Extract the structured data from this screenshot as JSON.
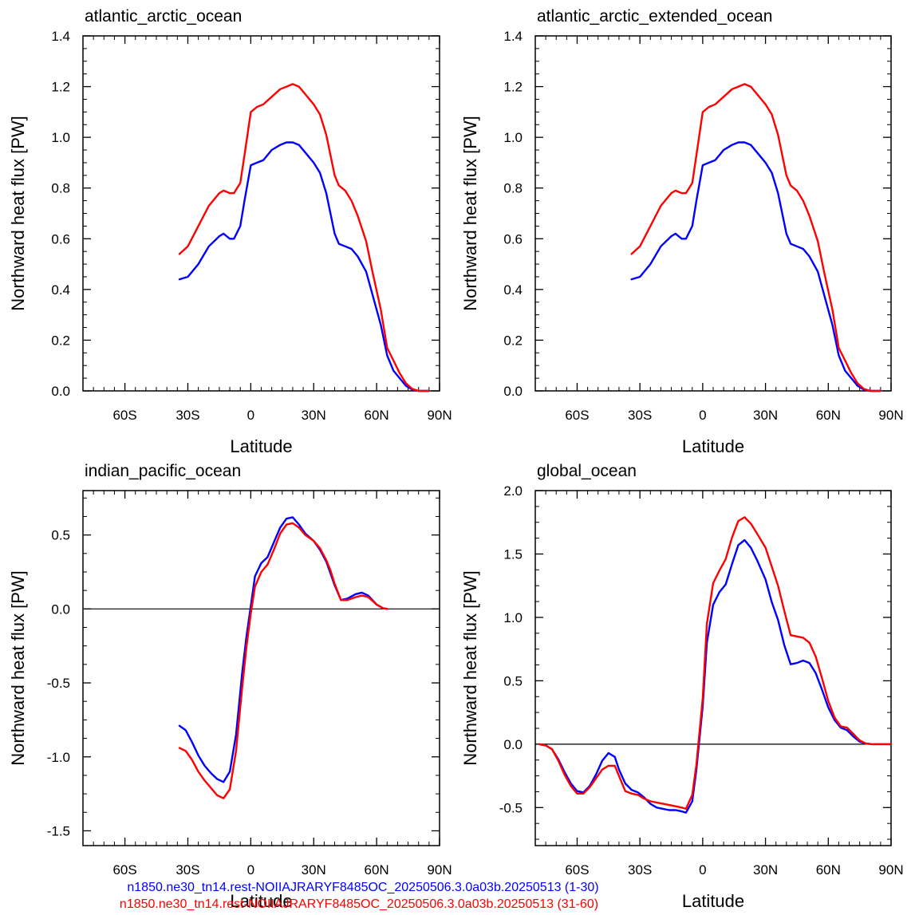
{
  "colors": {
    "series1": "#0000ff",
    "series2": "#ff0000",
    "axis": "#000000",
    "zero_line": "#000000"
  },
  "legend": {
    "series1": "n1850.ne30_tn14.rest-NOIIAJRARYF8485OC_20250506.3.0a03b.20250513 (1-30)",
    "series2": "n1850.ne30_tn14.rest-NOIIAJRARYF8485OC_20250506.3.0a03b.20250513 (31-60)"
  },
  "chart_data": [
    {
      "type": "line",
      "title": "atlantic_arctic_ocean",
      "xlabel": "Latitude",
      "ylabel": "Northward heat flux [PW]",
      "xlim": [
        -80,
        90
      ],
      "ylim": [
        0.0,
        1.4
      ],
      "xticks": [
        -60,
        -30,
        0,
        30,
        60,
        90
      ],
      "xtick_labels": [
        "60S",
        "30S",
        "0",
        "30N",
        "60N",
        "90N"
      ],
      "yticks": [
        0.0,
        0.2,
        0.4,
        0.6,
        0.8,
        1.0,
        1.2,
        1.4
      ],
      "ytick_labels": [
        "0.0",
        "0.2",
        "0.4",
        "0.6",
        "0.8",
        "1.0",
        "1.2",
        "1.4"
      ],
      "zero_line": false,
      "series": [
        {
          "color": "#0000ff",
          "x": [
            -34,
            -30,
            -25,
            -20,
            -15,
            -13,
            -10,
            -8,
            -5,
            -3,
            0,
            3,
            6,
            10,
            14,
            17,
            20,
            23,
            26,
            30,
            33,
            36,
            40,
            42,
            45,
            48,
            51,
            55,
            58,
            62,
            65,
            68,
            71,
            74,
            77,
            80,
            83,
            85
          ],
          "y": [
            0.44,
            0.45,
            0.5,
            0.57,
            0.61,
            0.62,
            0.6,
            0.6,
            0.65,
            0.75,
            0.89,
            0.9,
            0.91,
            0.95,
            0.97,
            0.98,
            0.98,
            0.97,
            0.94,
            0.9,
            0.86,
            0.78,
            0.62,
            0.58,
            0.57,
            0.56,
            0.53,
            0.47,
            0.38,
            0.26,
            0.14,
            0.08,
            0.05,
            0.02,
            0.005,
            0.0,
            0.0,
            0.0
          ]
        },
        {
          "color": "#ff0000",
          "x": [
            -34,
            -30,
            -25,
            -20,
            -15,
            -13,
            -10,
            -8,
            -5,
            -3,
            0,
            3,
            6,
            10,
            14,
            17,
            20,
            23,
            26,
            30,
            33,
            36,
            40,
            42,
            45,
            48,
            51,
            55,
            58,
            62,
            65,
            68,
            71,
            74,
            77,
            80,
            83,
            85
          ],
          "y": [
            0.54,
            0.57,
            0.65,
            0.73,
            0.78,
            0.79,
            0.78,
            0.78,
            0.82,
            0.93,
            1.1,
            1.12,
            1.13,
            1.16,
            1.19,
            1.2,
            1.21,
            1.2,
            1.17,
            1.13,
            1.09,
            1.01,
            0.85,
            0.81,
            0.79,
            0.75,
            0.69,
            0.59,
            0.47,
            0.32,
            0.17,
            0.12,
            0.07,
            0.03,
            0.008,
            0.0,
            0.0,
            0.0
          ]
        }
      ]
    },
    {
      "type": "line",
      "title": "atlantic_arctic_extended_ocean",
      "xlabel": "Latitude",
      "ylabel": "Northward heat flux [PW]",
      "xlim": [
        -80,
        90
      ],
      "ylim": [
        0.0,
        1.4
      ],
      "xticks": [
        -60,
        -30,
        0,
        30,
        60,
        90
      ],
      "xtick_labels": [
        "60S",
        "30S",
        "0",
        "30N",
        "60N",
        "90N"
      ],
      "yticks": [
        0.0,
        0.2,
        0.4,
        0.6,
        0.8,
        1.0,
        1.2,
        1.4
      ],
      "ytick_labels": [
        "0.0",
        "0.2",
        "0.4",
        "0.6",
        "0.8",
        "1.0",
        "1.2",
        "1.4"
      ],
      "zero_line": false,
      "series": [
        {
          "color": "#0000ff",
          "x": [
            -34,
            -30,
            -25,
            -20,
            -15,
            -13,
            -10,
            -8,
            -5,
            -3,
            0,
            3,
            6,
            10,
            14,
            17,
            20,
            23,
            26,
            30,
            33,
            36,
            40,
            42,
            45,
            48,
            51,
            55,
            58,
            62,
            65,
            68,
            71,
            74,
            77,
            80,
            83,
            85
          ],
          "y": [
            0.44,
            0.45,
            0.5,
            0.57,
            0.61,
            0.62,
            0.6,
            0.6,
            0.65,
            0.75,
            0.89,
            0.9,
            0.91,
            0.95,
            0.97,
            0.98,
            0.98,
            0.97,
            0.94,
            0.9,
            0.86,
            0.78,
            0.62,
            0.58,
            0.57,
            0.56,
            0.53,
            0.47,
            0.38,
            0.26,
            0.14,
            0.08,
            0.05,
            0.02,
            0.005,
            0.0,
            0.0,
            0.0
          ]
        },
        {
          "color": "#ff0000",
          "x": [
            -34,
            -30,
            -25,
            -20,
            -15,
            -13,
            -10,
            -8,
            -5,
            -3,
            0,
            3,
            6,
            10,
            14,
            17,
            20,
            23,
            26,
            30,
            33,
            36,
            40,
            42,
            45,
            48,
            51,
            55,
            58,
            62,
            65,
            68,
            71,
            74,
            77,
            80,
            83,
            85
          ],
          "y": [
            0.54,
            0.57,
            0.65,
            0.73,
            0.78,
            0.79,
            0.78,
            0.78,
            0.82,
            0.93,
            1.1,
            1.12,
            1.13,
            1.16,
            1.19,
            1.2,
            1.21,
            1.2,
            1.17,
            1.13,
            1.09,
            1.01,
            0.85,
            0.81,
            0.79,
            0.75,
            0.69,
            0.59,
            0.47,
            0.32,
            0.17,
            0.12,
            0.07,
            0.03,
            0.008,
            0.0,
            0.0,
            0.0
          ]
        }
      ]
    },
    {
      "type": "line",
      "title": "indian_pacific_ocean",
      "xlabel": "Latitude",
      "ylabel": "Northward heat flux [PW]",
      "xlim": [
        -80,
        90
      ],
      "ylim": [
        -1.6,
        0.8
      ],
      "xticks": [
        -60,
        -30,
        0,
        30,
        60,
        90
      ],
      "xtick_labels": [
        "60S",
        "30S",
        "0",
        "30N",
        "60N",
        "90N"
      ],
      "yticks": [
        -1.5,
        -1.0,
        -0.5,
        0.0,
        0.5
      ],
      "ytick_labels": [
        "-1.5",
        "-1.0",
        "-0.5",
        "0.0",
        "0.5"
      ],
      "zero_line": true,
      "series": [
        {
          "color": "#0000ff",
          "x": [
            -34,
            -31,
            -28,
            -25,
            -22,
            -19,
            -16,
            -13,
            -10,
            -7,
            -4,
            -2,
            0,
            2,
            5,
            8,
            11,
            14,
            17,
            20,
            23,
            26,
            30,
            33,
            36,
            38,
            40,
            43,
            46,
            50,
            53,
            56,
            60,
            63,
            65
          ],
          "y": [
            -0.79,
            -0.82,
            -0.9,
            -0.99,
            -1.06,
            -1.11,
            -1.15,
            -1.17,
            -1.1,
            -0.85,
            -0.42,
            -0.18,
            0.02,
            0.22,
            0.31,
            0.35,
            0.45,
            0.55,
            0.61,
            0.62,
            0.57,
            0.51,
            0.46,
            0.4,
            0.32,
            0.24,
            0.16,
            0.06,
            0.07,
            0.1,
            0.11,
            0.09,
            0.03,
            0.005,
            0.0
          ]
        },
        {
          "color": "#ff0000",
          "x": [
            -34,
            -31,
            -28,
            -25,
            -22,
            -19,
            -16,
            -13,
            -10,
            -7,
            -4,
            -2,
            0,
            2,
            5,
            8,
            11,
            14,
            17,
            20,
            23,
            26,
            30,
            33,
            36,
            38,
            40,
            43,
            46,
            50,
            53,
            56,
            60,
            63,
            65
          ],
          "y": [
            -0.94,
            -0.96,
            -1.02,
            -1.1,
            -1.16,
            -1.21,
            -1.26,
            -1.28,
            -1.22,
            -0.96,
            -0.52,
            -0.25,
            -0.03,
            0.15,
            0.25,
            0.3,
            0.4,
            0.51,
            0.57,
            0.58,
            0.55,
            0.5,
            0.46,
            0.41,
            0.33,
            0.26,
            0.17,
            0.06,
            0.06,
            0.08,
            0.09,
            0.08,
            0.03,
            0.005,
            0.0
          ]
        }
      ]
    },
    {
      "type": "line",
      "title": "global_ocean",
      "xlabel": "Latitude",
      "ylabel": "Northward heat flux [PW]",
      "xlim": [
        -80,
        90
      ],
      "ylim": [
        -0.8,
        2.0
      ],
      "xticks": [
        -60,
        -30,
        0,
        30,
        60,
        90
      ],
      "xtick_labels": [
        "60S",
        "30S",
        "0",
        "30N",
        "60N",
        "90N"
      ],
      "yticks": [
        -0.5,
        0.0,
        0.5,
        1.0,
        1.5,
        2.0
      ],
      "ytick_labels": [
        "-0.5",
        "0.0",
        "0.5",
        "1.0",
        "1.5",
        "2.0"
      ],
      "zero_line": true,
      "series": [
        {
          "color": "#0000ff",
          "x": [
            -78,
            -75,
            -72,
            -69,
            -66,
            -63,
            -60,
            -57,
            -54,
            -51,
            -48,
            -45,
            -42,
            -40,
            -37,
            -34,
            -31,
            -28,
            -25,
            -22,
            -19,
            -16,
            -13,
            -10,
            -8,
            -5,
            -3,
            0,
            2,
            5,
            8,
            11,
            14,
            17,
            20,
            23,
            26,
            30,
            33,
            36,
            39,
            42,
            45,
            48,
            51,
            54,
            57,
            60,
            63,
            66,
            69,
            72,
            75,
            78,
            81,
            84,
            87,
            90
          ],
          "y": [
            0.0,
            -0.01,
            -0.04,
            -0.12,
            -0.22,
            -0.31,
            -0.37,
            -0.38,
            -0.33,
            -0.24,
            -0.13,
            -0.07,
            -0.1,
            -0.2,
            -0.31,
            -0.36,
            -0.38,
            -0.42,
            -0.47,
            -0.5,
            -0.51,
            -0.52,
            -0.52,
            -0.53,
            -0.54,
            -0.45,
            -0.2,
            0.3,
            0.8,
            1.1,
            1.2,
            1.26,
            1.42,
            1.57,
            1.61,
            1.55,
            1.45,
            1.3,
            1.12,
            0.98,
            0.78,
            0.63,
            0.64,
            0.66,
            0.64,
            0.56,
            0.43,
            0.29,
            0.19,
            0.13,
            0.11,
            0.06,
            0.02,
            0.005,
            0.0,
            0.0,
            0.0,
            0.0
          ]
        },
        {
          "color": "#ff0000",
          "x": [
            -78,
            -75,
            -72,
            -69,
            -66,
            -63,
            -60,
            -57,
            -54,
            -51,
            -48,
            -45,
            -42,
            -40,
            -37,
            -34,
            -31,
            -28,
            -25,
            -22,
            -19,
            -16,
            -13,
            -10,
            -8,
            -5,
            -3,
            0,
            2,
            5,
            8,
            11,
            14,
            17,
            20,
            23,
            26,
            30,
            33,
            36,
            39,
            42,
            45,
            48,
            51,
            54,
            57,
            60,
            63,
            66,
            69,
            72,
            75,
            78,
            81,
            84,
            87,
            90
          ],
          "y": [
            0.0,
            -0.01,
            -0.04,
            -0.13,
            -0.24,
            -0.33,
            -0.39,
            -0.39,
            -0.34,
            -0.27,
            -0.2,
            -0.17,
            -0.17,
            -0.25,
            -0.37,
            -0.39,
            -0.4,
            -0.43,
            -0.45,
            -0.46,
            -0.47,
            -0.48,
            -0.49,
            -0.5,
            -0.51,
            -0.4,
            -0.16,
            0.36,
            0.95,
            1.27,
            1.37,
            1.46,
            1.63,
            1.76,
            1.79,
            1.74,
            1.66,
            1.55,
            1.4,
            1.25,
            1.05,
            0.86,
            0.85,
            0.84,
            0.8,
            0.69,
            0.52,
            0.34,
            0.21,
            0.14,
            0.13,
            0.08,
            0.03,
            0.005,
            0.0,
            0.0,
            0.0,
            0.0
          ]
        }
      ]
    }
  ]
}
